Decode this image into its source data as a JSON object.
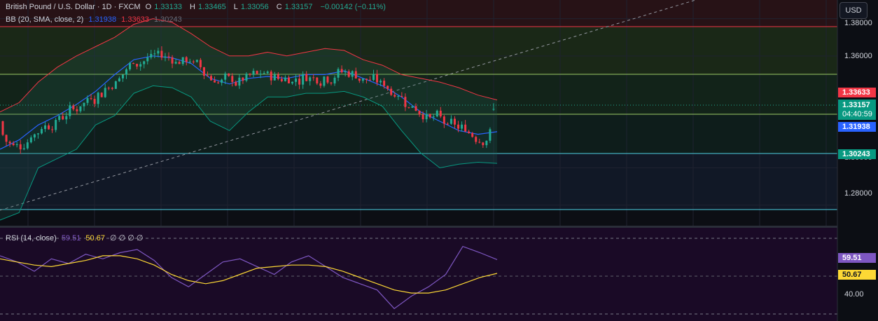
{
  "header": {
    "symbol": "British Pound / U.S. Dollar · 1D · FXCM",
    "open_label": "O",
    "open": "1.33133",
    "high_label": "H",
    "high": "1.33465",
    "low_label": "L",
    "low": "1.33056",
    "close_label": "C",
    "close": "1.33157",
    "change": "−0.00142 (−0.11%)"
  },
  "bb_legend": {
    "label": "BB (20, SMA, close, 2)",
    "basis": "1.31938",
    "upper": "1.33633",
    "lower": "1.30243"
  },
  "rsi_legend": {
    "label": "RSI (14, close)",
    "rsi": "59.51",
    "ma": "50.67",
    "empty": "∅ ∅ ∅ ∅"
  },
  "currency_button": "USD",
  "price_axis": {
    "ticks": [
      "1.38000",
      "1.36000",
      "1.30000",
      "1.28000"
    ]
  },
  "price_tags": {
    "bb_upper": "1.33633",
    "last_price": "1.33157",
    "countdown": "04:40:59",
    "bb_basis": "1.31938",
    "bb_lower": "1.30243"
  },
  "rsi_axis": {
    "tick": "40.00",
    "rsi_tag": "59.51",
    "ma_tag": "50.67"
  },
  "colors": {
    "bg": "#0c0e14",
    "up": "#22ab94",
    "down": "#f23645",
    "bb_upper": "#f23645",
    "bb_basis": "#2962ff",
    "bb_lower": "#089981",
    "rsi": "#7e57c2",
    "rsi_ma": "#fdd835",
    "grid": "#1f2230"
  },
  "chart_data": [
    {
      "type": "candlestick",
      "title": "British Pound / U.S. Dollar · 1D · FXCM",
      "ylim": [
        1.269,
        1.39
      ],
      "y_ticks": [
        1.28,
        1.3,
        1.36,
        1.38
      ],
      "grid": true,
      "last_candle": {
        "open": 1.33133,
        "high": 1.33465,
        "low": 1.33056,
        "close": 1.33157
      },
      "series": [
        {
          "name": "BB upper",
          "values": [
            1.33,
            1.335,
            1.346,
            1.354,
            1.36,
            1.365,
            1.37,
            1.377,
            1.38,
            1.378,
            1.372,
            1.365,
            1.36,
            1.36,
            1.362,
            1.36,
            1.362,
            1.364,
            1.363,
            1.358,
            1.355,
            1.35,
            1.348,
            1.346,
            1.343,
            1.339,
            1.3364
          ]
        },
        {
          "name": "BB basis",
          "values": [
            1.31,
            1.315,
            1.323,
            1.328,
            1.334,
            1.341,
            1.35,
            1.358,
            1.36,
            1.359,
            1.356,
            1.348,
            1.345,
            1.348,
            1.349,
            1.348,
            1.35,
            1.35,
            1.352,
            1.348,
            1.344,
            1.338,
            1.33,
            1.325,
            1.32,
            1.318,
            1.3194
          ]
        },
        {
          "name": "BB lower",
          "values": [
            1.272,
            1.276,
            1.3,
            1.305,
            1.31,
            1.323,
            1.328,
            1.34,
            1.344,
            1.343,
            1.338,
            1.325,
            1.32,
            1.33,
            1.338,
            1.338,
            1.34,
            1.34,
            1.341,
            1.338,
            1.333,
            1.32,
            1.308,
            1.3,
            1.302,
            1.303,
            1.3024
          ]
        }
      ]
    },
    {
      "type": "line",
      "title": "RSI (14, close)",
      "ylim": [
        20,
        80
      ],
      "y_ticks": [
        40
      ],
      "grid": true,
      "series": [
        {
          "name": "RSI",
          "values": [
            62,
            58,
            52,
            60,
            57,
            63,
            60,
            64,
            66,
            59,
            48,
            42,
            50,
            58,
            60,
            55,
            50,
            58,
            62,
            55,
            48,
            44,
            40,
            28,
            36,
            42,
            50,
            68,
            64,
            59.51
          ]
        },
        {
          "name": "RSI MA",
          "values": [
            60,
            58,
            56,
            55,
            57,
            59,
            62,
            62,
            60,
            56,
            50,
            46,
            44,
            46,
            50,
            54,
            55,
            56,
            56,
            55,
            52,
            48,
            44,
            40,
            38,
            38,
            40,
            44,
            48,
            50.67
          ]
        }
      ]
    }
  ]
}
